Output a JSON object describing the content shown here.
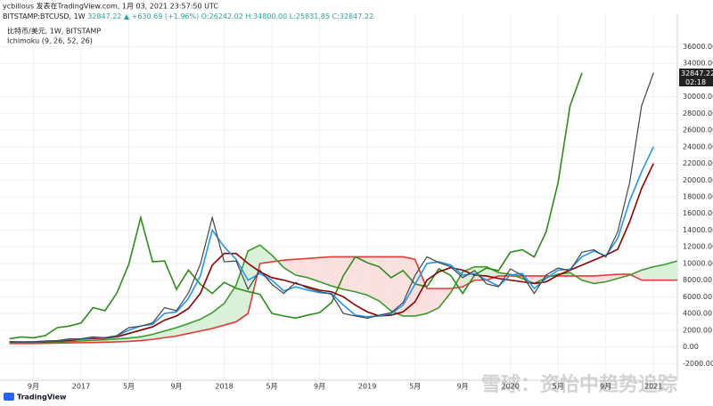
{
  "chart_data": {
    "type": "line",
    "author_line": "ycbillous 发表在TradingView.com, 1月 03, 2021 23:57:50 UTC",
    "symbol": "BITSTAMP:BTCUSD, 1W",
    "last": "32847.22",
    "change": "▲ +630.69 (+1.96%)",
    "ohlc": "O:26242.02 H:34800.00 L:25831.85 C:32847.22",
    "legend_lines": [
      "比特币/美元, 1W, BITSTAMP",
      "Ichimoku (9, 26, 52, 26)"
    ],
    "price_label": "32847.22",
    "countdown": "02:18",
    "watermark": "雪球：资怡中趋势追踪",
    "brand": "TradingView",
    "x": [
      -2,
      -1,
      0,
      1,
      2,
      3,
      4,
      5,
      6,
      7,
      8,
      9,
      10,
      11,
      12,
      13,
      14,
      15,
      16,
      17,
      18,
      19,
      20,
      21,
      22,
      23,
      24,
      25,
      26,
      27,
      28,
      29,
      30,
      31,
      32,
      33,
      34,
      35,
      36,
      37,
      38,
      39,
      40,
      41,
      42,
      43,
      44,
      45,
      46,
      47,
      48,
      49,
      50,
      51,
      52,
      53,
      54
    ],
    "xlim": [
      -2.8,
      54
    ],
    "xticks": [
      {
        "value": 0,
        "label": "9月"
      },
      {
        "value": 4,
        "label": "2017"
      },
      {
        "value": 8,
        "label": "5月"
      },
      {
        "value": 12,
        "label": "9月"
      },
      {
        "value": 16,
        "label": "2018"
      },
      {
        "value": 20,
        "label": "5月"
      },
      {
        "value": 24,
        "label": "9月"
      },
      {
        "value": 28,
        "label": "2019"
      },
      {
        "value": 32,
        "label": "5月"
      },
      {
        "value": 36,
        "label": "9月"
      },
      {
        "value": 40,
        "label": "2020"
      },
      {
        "value": 44,
        "label": "5月"
      },
      {
        "value": 48,
        "label": "9月"
      },
      {
        "value": 52,
        "label": "2021"
      }
    ],
    "ylim": [
      -4000,
      40000
    ],
    "yticks": [
      {
        "value": -2000,
        "label": "-2000.00"
      },
      {
        "value": 0,
        "label": "0.00"
      },
      {
        "value": 2000,
        "label": "2000.00"
      },
      {
        "value": 4000,
        "label": "4000.00"
      },
      {
        "value": 6000,
        "label": "6000.00"
      },
      {
        "value": 8000,
        "label": "8000.00"
      },
      {
        "value": 10000,
        "label": "10000.00"
      },
      {
        "value": 12000,
        "label": "12000.00"
      },
      {
        "value": 14000,
        "label": "14000.00"
      },
      {
        "value": 16000,
        "label": "16000.00"
      },
      {
        "value": 18000,
        "label": "18000.00"
      },
      {
        "value": 20000,
        "label": "20000.00"
      },
      {
        "value": 22000,
        "label": "22000.00"
      },
      {
        "value": 24000,
        "label": "24000.00"
      },
      {
        "value": 26000,
        "label": "26000.00"
      },
      {
        "value": 28000,
        "label": "28000.00"
      },
      {
        "value": 30000,
        "label": "30000.00"
      },
      {
        "value": 34000,
        "label": "34000.00"
      },
      {
        "value": 36000,
        "label": "36000.00"
      }
    ],
    "grid": true,
    "cloud_colors": [
      "#d9f0d9",
      "#fbe0e0"
    ],
    "series": [
      {
        "color": "#444444",
        "values": [
          620,
          575,
          610,
          700,
          740,
          960,
          970,
          1190,
          1080,
          1350,
          2300,
          2480,
          2870,
          4700,
          4340,
          6450,
          9900,
          15500,
          10200,
          10300,
          6900,
          9200,
          7500,
          6400,
          7730,
          7030,
          6630,
          6300,
          4000,
          3700,
          3440,
          3800,
          4100,
          5300,
          8550,
          10800,
          10100,
          9600,
          8300,
          9150,
          7550,
          7200,
          9350,
          8550,
          6400,
          8620,
          9450,
          9140,
          11350,
          11650,
          10780,
          13800,
          19700,
          28900,
          32847,
          null,
          null
        ]
      },
      {
        "color": "#2196f3",
        "values": [
          600,
          590,
          600,
          680,
          730,
          900,
          950,
          1100,
          1100,
          1300,
          2000,
          2500,
          2700,
          4000,
          4200,
          5800,
          8500,
          14000,
          12000,
          10500,
          8000,
          8800,
          8000,
          6700,
          7200,
          6800,
          6500,
          6400,
          5000,
          3800,
          3600,
          3700,
          4000,
          5000,
          7500,
          10000,
          10200,
          9800,
          8600,
          8800,
          8000,
          7300,
          8600,
          8800,
          7000,
          8200,
          9200,
          9300,
          10800,
          11500,
          10900,
          13000,
          17500,
          21000,
          24000,
          null,
          null
        ]
      },
      {
        "color": "#8b0000",
        "values": [
          580,
          580,
          590,
          620,
          680,
          800,
          900,
          1000,
          1050,
          1200,
          1600,
          2000,
          2400,
          3200,
          3700,
          4600,
          6400,
          9800,
          11200,
          11200,
          10000,
          9000,
          8300,
          8000,
          7600,
          7200,
          6800,
          6600,
          6000,
          5000,
          4200,
          3700,
          3800,
          4200,
          5400,
          8000,
          9000,
          9500,
          9200,
          8600,
          8500,
          8200,
          8000,
          7800,
          7600,
          7800,
          8600,
          9200,
          9800,
          10400,
          11000,
          11700,
          15000,
          19000,
          22000,
          null,
          null
        ]
      },
      {
        "color": "#2e8b1a",
        "values": [
          970,
          1190,
          1080,
          1350,
          2300,
          2480,
          2870,
          4700,
          4340,
          6450,
          9900,
          15500,
          10200,
          10300,
          6900,
          9200,
          7500,
          6400,
          7730,
          7030,
          6630,
          6300,
          4000,
          3700,
          3440,
          3800,
          4100,
          5300,
          8550,
          10800,
          10100,
          9600,
          8300,
          9150,
          7550,
          7200,
          9350,
          8550,
          6400,
          8620,
          9450,
          9140,
          11350,
          11650,
          10780,
          13800,
          19700,
          28900,
          32847,
          null,
          null,
          null,
          null,
          null,
          null,
          null,
          null
        ]
      },
      {
        "color": "#3a9b2a",
        "values": [
          500,
          500,
          520,
          560,
          600,
          650,
          700,
          780,
          850,
          950,
          1050,
          1200,
          1500,
          1900,
          2300,
          2800,
          3300,
          4100,
          5200,
          7400,
          11500,
          12200,
          11000,
          9500,
          8600,
          8300,
          7800,
          7300,
          6900,
          6600,
          6200,
          5500,
          4300,
          3700,
          3700,
          4000,
          4700,
          6500,
          9000,
          9600,
          9600,
          8900,
          8700,
          8200,
          7600,
          8300,
          8700,
          8900,
          8000,
          7600,
          7800,
          8200,
          8600,
          9200,
          9600,
          9900,
          10300
        ]
      },
      {
        "color": "#e53935",
        "values": [
          400,
          400,
          400,
          420,
          450,
          480,
          500,
          520,
          560,
          600,
          650,
          750,
          900,
          1100,
          1300,
          1600,
          1900,
          2200,
          2600,
          3000,
          4000,
          10000,
          10200,
          10400,
          10500,
          10600,
          10700,
          10800,
          10800,
          10800,
          10800,
          10800,
          10800,
          10800,
          10500,
          7000,
          7000,
          7000,
          7200,
          8000,
          8000,
          8500,
          8500,
          8500,
          8500,
          8500,
          8500,
          8500,
          8500,
          8500,
          8600,
          8700,
          8700,
          8000,
          8000,
          8000,
          8000
        ]
      }
    ]
  }
}
